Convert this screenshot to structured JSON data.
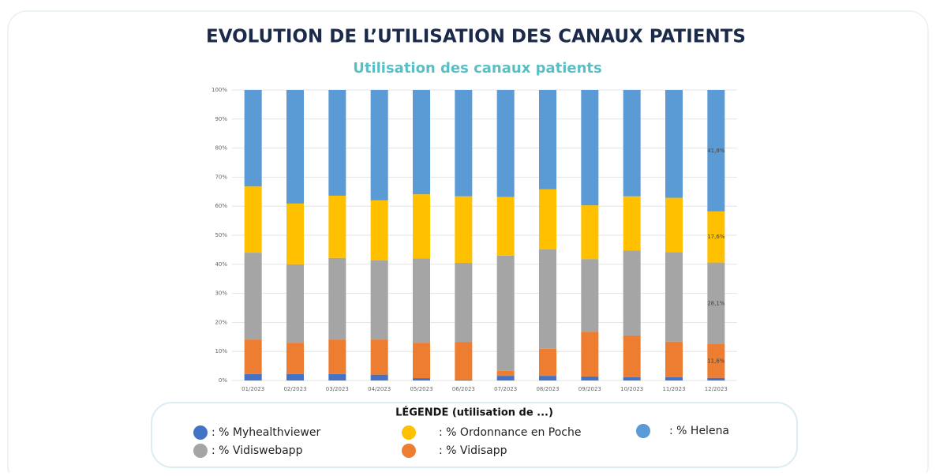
{
  "chart_data": {
    "type": "bar",
    "stacked": true,
    "title": "EVOLUTION DE L’UTILISATION DES CANAUX PATIENTS",
    "subtitle": "Utilisation des canaux patients",
    "legend_title": "LÉGENDE (utilisation de ...)",
    "categories": [
      "01/2023",
      "02/2023",
      "03/2023",
      "04/2023",
      "05/2023",
      "06/2023",
      "07/2023",
      "08/2023",
      "09/2023",
      "10/2023",
      "11/2023",
      "12/2023"
    ],
    "series": [
      {
        "name": ": % Myhealthviewer",
        "color": "#4472c4",
        "values": [
          2.2,
          2.2,
          2.2,
          2.0,
          0.8,
          0.3,
          1.6,
          1.6,
          1.4,
          1.1,
          1.1,
          0.9
        ]
      },
      {
        "name": ": % Vidisapp",
        "color": "#ed7d31",
        "values": [
          11.9,
          10.8,
          11.9,
          12.1,
          12.2,
          13.0,
          1.7,
          9.3,
          15.4,
          14.4,
          12.3,
          11.6
        ],
        "value_labels": [
          null,
          null,
          null,
          null,
          null,
          null,
          null,
          null,
          null,
          null,
          null,
          "11,6%"
        ]
      },
      {
        "name": ": % Vidiswebapp",
        "color": "#a5a5a5",
        "values": [
          29.9,
          27.0,
          28.1,
          27.2,
          29.0,
          27.2,
          39.7,
          34.2,
          25.0,
          29.3,
          30.8,
          28.1
        ],
        "value_labels": [
          null,
          null,
          null,
          null,
          null,
          null,
          null,
          null,
          null,
          null,
          null,
          "28,1%"
        ]
      },
      {
        "name": ": % Ordonnance en Poche",
        "color": "#ffc000",
        "values": [
          22.8,
          20.9,
          21.4,
          20.7,
          22.1,
          22.9,
          20.2,
          20.7,
          18.5,
          18.6,
          18.7,
          17.6
        ],
        "value_labels": [
          null,
          null,
          null,
          null,
          null,
          null,
          null,
          null,
          null,
          null,
          null,
          "17,6%"
        ]
      },
      {
        "name": ": % Helena",
        "color": "#5b9bd5",
        "values": [
          33.2,
          39.1,
          36.4,
          38.0,
          35.9,
          36.6,
          36.8,
          34.2,
          39.7,
          36.6,
          37.1,
          41.8
        ],
        "value_labels": [
          null,
          null,
          null,
          null,
          null,
          null,
          null,
          null,
          null,
          null,
          null,
          "41,8%"
        ]
      }
    ],
    "ylim": [
      0,
      100
    ],
    "yticks": [
      {
        "value": 0,
        "label": "0%"
      },
      {
        "value": 10,
        "label": "10%"
      },
      {
        "value": 20,
        "label": "20%"
      },
      {
        "value": 30,
        "label": "30%"
      },
      {
        "value": 40,
        "label": "40%"
      },
      {
        "value": 50,
        "label": "50%"
      },
      {
        "value": 60,
        "label": "60%"
      },
      {
        "value": 70,
        "label": "70%"
      },
      {
        "value": 80,
        "label": "80%"
      },
      {
        "value": 90,
        "label": "90%"
      },
      {
        "value": 100,
        "label": "100%"
      }
    ],
    "grid": true
  }
}
